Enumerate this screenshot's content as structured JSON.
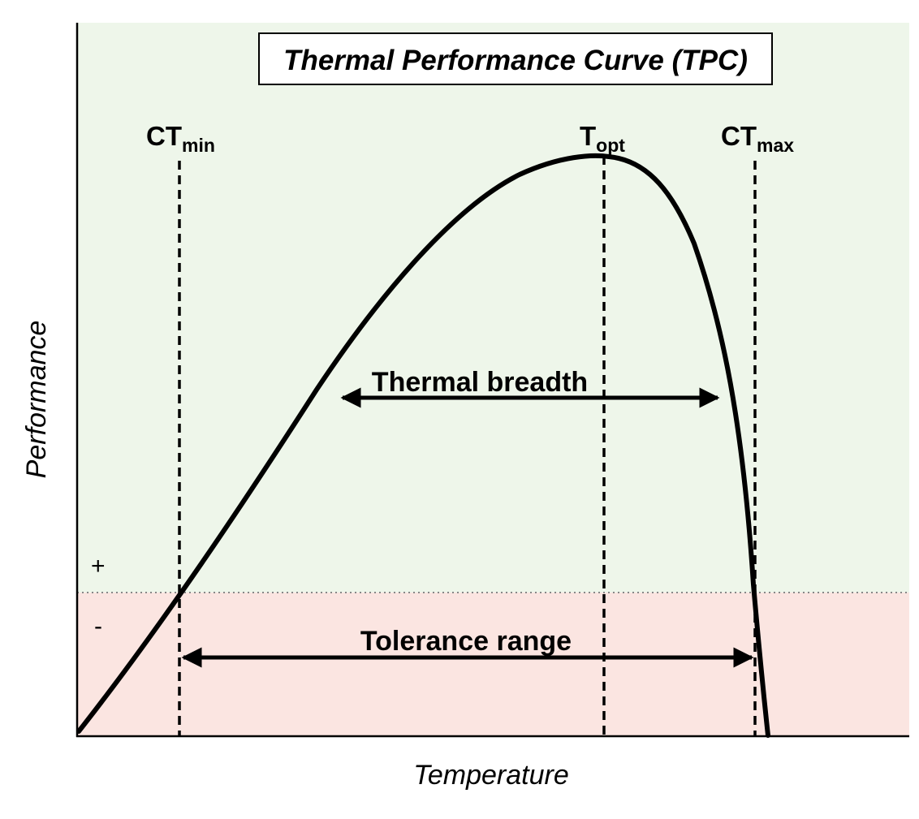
{
  "title": "Thermal Performance Curve (TPC)",
  "axes": {
    "x_label": "Temperature",
    "y_label": "Performance"
  },
  "sign_labels": {
    "positive": "+",
    "negative": "-"
  },
  "markers": {
    "ct_min": {
      "main": "CT",
      "sub": "min"
    },
    "t_opt": {
      "main": "T",
      "sub": "opt"
    },
    "ct_max": {
      "main": "CT",
      "sub": "max"
    }
  },
  "ranges": {
    "thermal_breadth": "Thermal breadth",
    "tolerance_range": "Tolerance range"
  },
  "colors": {
    "positive_zone": "#eef6ea",
    "negative_zone": "#fbe5e1",
    "line": "#000000",
    "baseline": "#888888"
  }
}
